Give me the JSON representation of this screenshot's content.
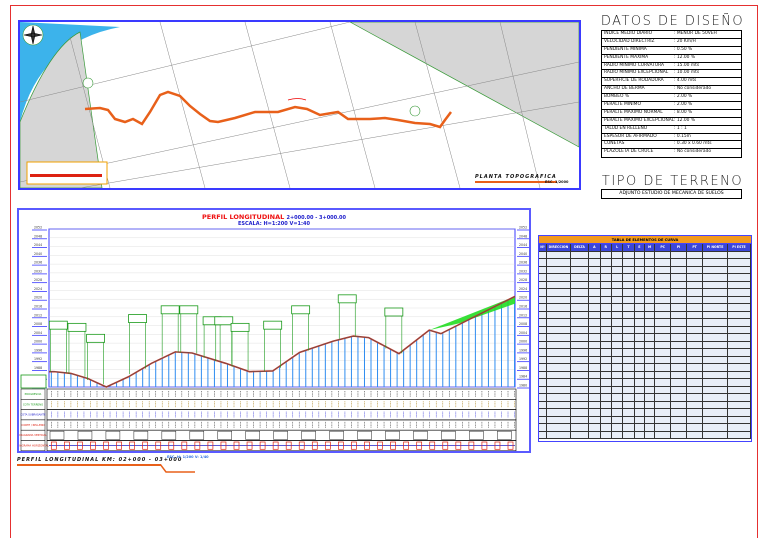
{
  "plan": {
    "title": "PLANTA TOPOGRAFICA",
    "scale": "ESC. 1/2000"
  },
  "datos_diseno": {
    "title": "DATOS DE DISEÑO",
    "rows": [
      {
        "label": "INDICE MEDIO DIARIO",
        "value": ": MENOR DE 50VEH"
      },
      {
        "label": "VELOCIDAD DIRECTRIZ",
        "value": ": 20 Km/H"
      },
      {
        "label": "PENDIENTE MINIMA",
        "value": ": 0.50 %"
      },
      {
        "label": "PENDIENTE MAXIMA",
        "value": ": 12.00 %"
      },
      {
        "label": "RADIO MINIMO CURVATURA",
        "value": ": 15.00 mts"
      },
      {
        "label": "RADIO MINIMO EXCEPCIONAL",
        "value": ": 10.00 mts"
      },
      {
        "label": "SUPERFICIE DE RODADURA",
        "value": ": 4.00 mts"
      },
      {
        "label": "ANCHO DE BERMA",
        "value": ": No considerado"
      },
      {
        "label": "BOMBEO %",
        "value": ": 2.00 %"
      },
      {
        "label": "PERALTE MINIMO",
        "value": ": 2.00 %"
      },
      {
        "label": "PERALTE MAXIMO NORMAL",
        "value": ": 8.00 %"
      },
      {
        "label": "PERALTE MAXIMO EXCEPCIONAL",
        "value": ": 12.00 %"
      },
      {
        "label": "TALUD EN RELLENO",
        "value": ": 1 : 1"
      },
      {
        "label": "ESPESOR DE AFIRMADO",
        "value": ": 0.15m"
      },
      {
        "label": "CUNETAS",
        "value": ": 0.30 x 0.60 mts"
      },
      {
        "label": "PLAZOLETA DE CRUCE",
        "value": ": No considerado"
      }
    ]
  },
  "tipo_terreno": {
    "title": "TIPO DE TERRENO",
    "value": "ADJUNTO ESTUDIO DE MECANICA DE SUELOS"
  },
  "profile": {
    "title": "PERFIL LONGITUDINAL",
    "range": "2+000.00 - 3+000.00",
    "scale": "ESCALA: H=1:200 V=1:40",
    "elevation_ticks": [
      2052,
      2048,
      2044,
      2040,
      2036,
      2032,
      2028,
      2024,
      2020,
      2016,
      2012,
      2008,
      2004,
      2000,
      1996,
      1992,
      1988,
      1984,
      1980
    ],
    "ground_profile": {
      "station_m": [
        0,
        11,
        47,
        83,
        123,
        170,
        220,
        271,
        307,
        379,
        430,
        480,
        538,
        610,
        653,
        686,
        751,
        816,
        841,
        1000
      ],
      "elevation": [
        1987,
        1987,
        1986.2,
        1983.9,
        1980,
        1984.6,
        1990.8,
        1996,
        1995.5,
        1990.8,
        1987,
        1987.3,
        1995.8,
        2000.9,
        2003.2,
        2002.5,
        1995.2,
        2005.9,
        2004.3,
        2021.3
      ]
    },
    "bands": [
      "PROGRESIVA",
      "COTA TERRENO",
      "COTA SUBRASANTE",
      "CORTE / RELLENO",
      "DIAGRAMA VERTICAL",
      "DIAGRAMA HORIZONTAL"
    ],
    "footer_title": "PERFIL LONGITUDINAL  KM: 02+000 - 03+000",
    "footer_scale": "ESC. H: 1/200  V: 1/40"
  },
  "curve_table": {
    "title": "TABLA DE ELEMENTOS DE CURVA",
    "headers": [
      "Nº",
      "DIRECCION",
      "DELTA",
      "Δ",
      "R",
      "L",
      "T",
      "E",
      "M",
      "PC",
      "PI",
      "PT",
      "PI NORTE",
      "PI ESTE"
    ]
  },
  "colors": {
    "frame": "#e53030",
    "border": "#3a3aff",
    "road": "#e8601a",
    "terrain": "#c0392b",
    "fill_green": "#22dd22",
    "header_orange": "#f39a1c"
  }
}
